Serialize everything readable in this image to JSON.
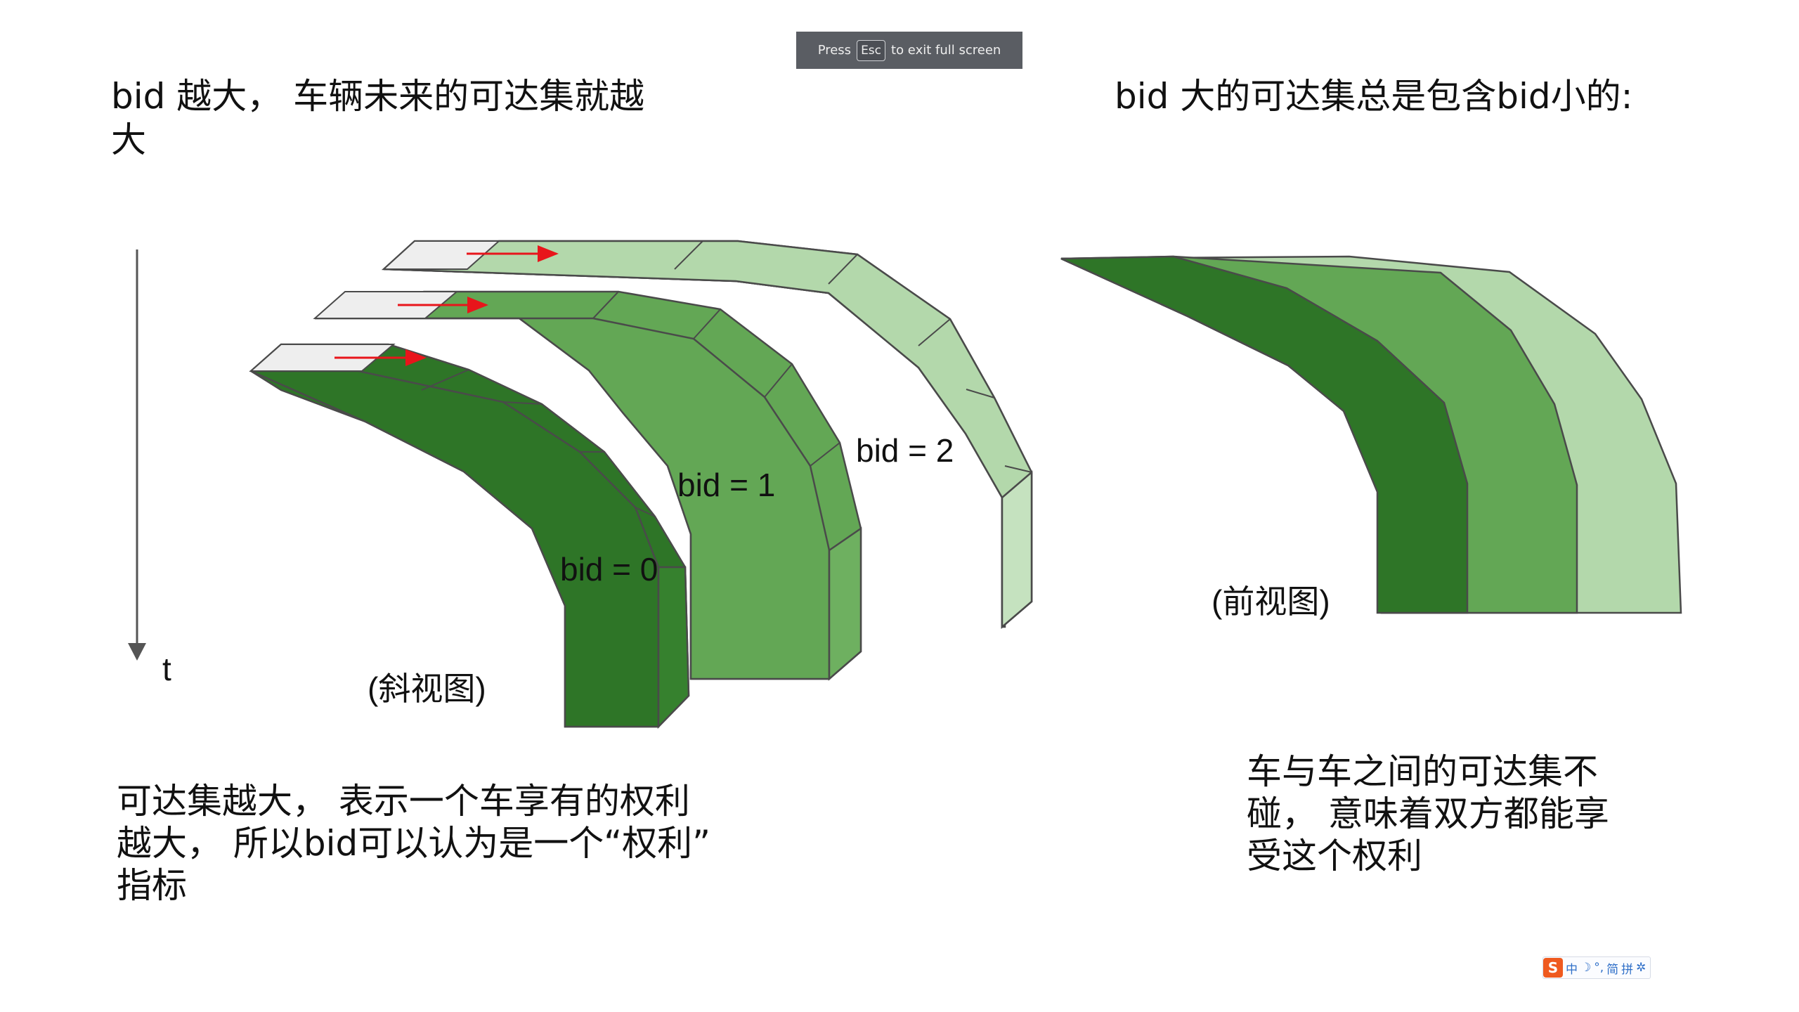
{
  "fullscreen_banner": {
    "press": "Press",
    "key": "Esc",
    "rest": "to exit full screen"
  },
  "slide": {
    "heading_left": "bid 越大， 车辆未来的可达集就越\n大",
    "heading_right": "bid 大的可达集总是包含bid小的:",
    "time_axis_label": "t",
    "bid_labels": [
      "bid = 0",
      "bid = 1",
      "bid = 2"
    ],
    "oblique_view_caption": "(斜视图)",
    "front_view_caption": "(前视图)",
    "bottom_left_text": "可达集越大， 表示一个车享有的权利\n越大， 所以bid可以认为是一个“权利”\n指标",
    "bottom_right_text": "车与车之间的可达集不\n碰， 意味着双方都能享\n受这个权利"
  },
  "colors": {
    "bid0_green": "#2e7527",
    "bid1_green": "#63a755",
    "bid2_green": "#b3d8ab",
    "start_plate": "#eeeeee",
    "arrow_red": "#e8151b",
    "outline": "#4a4a4a"
  },
  "ime_toolbar": {
    "logo": "S",
    "items": [
      "中",
      "☽",
      "°,",
      "简",
      "拼",
      "✲"
    ]
  }
}
